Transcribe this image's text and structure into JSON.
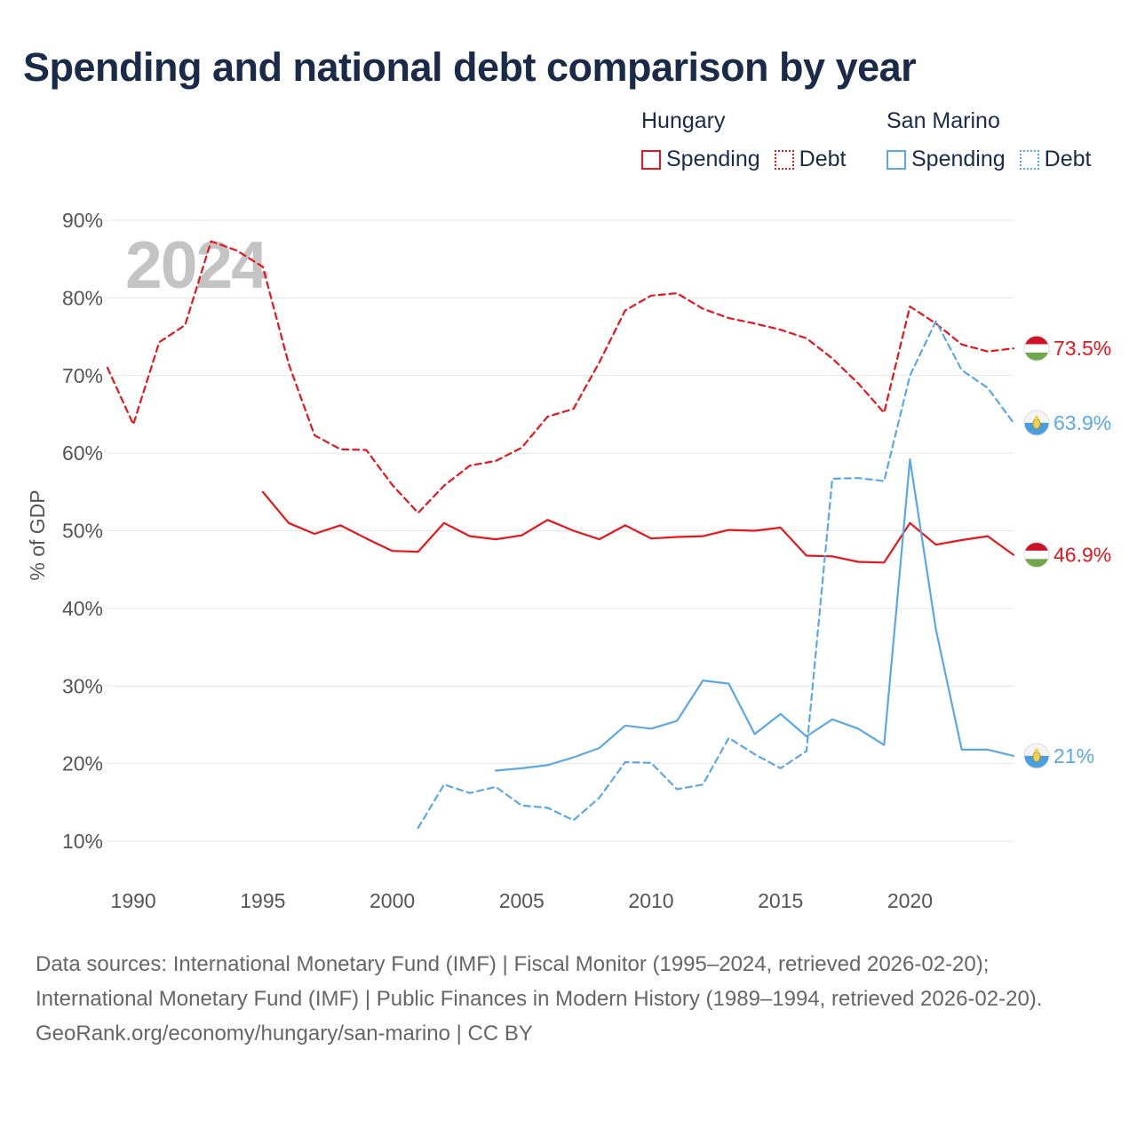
{
  "title": "Spending and national debt comparison by year",
  "legend": {
    "groups": [
      {
        "country": "Hungary",
        "color": "#e8151b",
        "items": [
          {
            "label": "Spending",
            "style": "solid"
          },
          {
            "label": "Debt",
            "style": "dotted"
          }
        ]
      },
      {
        "country": "San Marino",
        "color": "#5ba8e6",
        "items": [
          {
            "label": "Spending",
            "style": "solid"
          },
          {
            "label": "Debt",
            "style": "dotted"
          }
        ]
      }
    ]
  },
  "footer": {
    "sources": "Data sources: International Monetary Fund (IMF) | Fiscal Monitor (1995–2024, retrieved 2026-02-20); International Monetary Fund (IMF) | Public Finances in Modern History (1989–1994, retrieved 2026-02-20).",
    "credit": "GeoRank.org/economy/hungary/san-marino | CC BY"
  },
  "chart_data": {
    "type": "line",
    "title": "Spending and national debt comparison by year",
    "watermark_year": "2024",
    "ylabel": "% of GDP",
    "xlabel": "",
    "xlim": [
      1989,
      2024
    ],
    "ylim": [
      10,
      90
    ],
    "yticks": [
      10,
      20,
      30,
      40,
      50,
      60,
      70,
      80,
      90
    ],
    "ytick_labels": [
      "10%",
      "20%",
      "30%",
      "40%",
      "50%",
      "60%",
      "70%",
      "80%",
      "90%"
    ],
    "xticks": [
      1990,
      1995,
      2000,
      2005,
      2010,
      2015,
      2020
    ],
    "grid": true,
    "series": [
      {
        "name": "Hungary Debt",
        "country": "Hungary",
        "color": "#e8151b",
        "dash": true,
        "end_label": "73.5%",
        "flag": "hungary",
        "points": [
          [
            1989,
            71
          ],
          [
            1990,
            63.7
          ],
          [
            1991,
            74.3
          ],
          [
            1992,
            76.5
          ],
          [
            1993,
            87.3
          ],
          [
            1994,
            86.1
          ],
          [
            1995,
            84
          ],
          [
            1996,
            71.5
          ],
          [
            1997,
            62.3
          ],
          [
            1998,
            60.5
          ],
          [
            1999,
            60.4
          ],
          [
            2000,
            55.9
          ],
          [
            2001,
            52.3
          ],
          [
            2002,
            55.8
          ],
          [
            2003,
            58.4
          ],
          [
            2004,
            59
          ],
          [
            2005,
            60.7
          ],
          [
            2006,
            64.7
          ],
          [
            2007,
            65.7
          ],
          [
            2008,
            71.7
          ],
          [
            2009,
            78.4
          ],
          [
            2010,
            80.3
          ],
          [
            2011,
            80.6
          ],
          [
            2012,
            78.6
          ],
          [
            2013,
            77.4
          ],
          [
            2014,
            76.7
          ],
          [
            2015,
            75.9
          ],
          [
            2016,
            74.8
          ],
          [
            2017,
            72.2
          ],
          [
            2018,
            69
          ],
          [
            2019,
            65.2
          ],
          [
            2020,
            78.9
          ],
          [
            2021,
            76.7
          ],
          [
            2022,
            74
          ],
          [
            2023,
            73.1
          ],
          [
            2024,
            73.5
          ]
        ]
      },
      {
        "name": "Hungary Spending",
        "country": "Hungary",
        "color": "#e8151b",
        "dash": false,
        "end_label": "46.9%",
        "flag": "hungary",
        "points": [
          [
            1995,
            55
          ],
          [
            1996,
            51
          ],
          [
            1997,
            49.6
          ],
          [
            1998,
            50.7
          ],
          [
            1999,
            49
          ],
          [
            2000,
            47.4
          ],
          [
            2001,
            47.3
          ],
          [
            2002,
            51
          ],
          [
            2003,
            49.3
          ],
          [
            2004,
            48.9
          ],
          [
            2005,
            49.4
          ],
          [
            2006,
            51.4
          ],
          [
            2007,
            50
          ],
          [
            2008,
            48.9
          ],
          [
            2009,
            50.7
          ],
          [
            2010,
            49
          ],
          [
            2011,
            49.2
          ],
          [
            2012,
            49.3
          ],
          [
            2013,
            50.1
          ],
          [
            2014,
            50
          ],
          [
            2015,
            50.4
          ],
          [
            2016,
            46.8
          ],
          [
            2017,
            46.7
          ],
          [
            2018,
            46
          ],
          [
            2019,
            45.9
          ],
          [
            2020,
            51
          ],
          [
            2021,
            48.2
          ],
          [
            2022,
            48.8
          ],
          [
            2023,
            49.3
          ],
          [
            2024,
            46.9
          ]
        ]
      },
      {
        "name": "San Marino Debt",
        "country": "San Marino",
        "color": "#5ba8e6",
        "dash": true,
        "end_label": "63.9%",
        "flag": "san-marino",
        "points": [
          [
            2001,
            11.7
          ],
          [
            2002,
            17.3
          ],
          [
            2003,
            16.2
          ],
          [
            2004,
            17
          ],
          [
            2005,
            14.6
          ],
          [
            2006,
            14.3
          ],
          [
            2007,
            12.7
          ],
          [
            2008,
            15.6
          ],
          [
            2009,
            20.2
          ],
          [
            2010,
            20.1
          ],
          [
            2011,
            16.7
          ],
          [
            2012,
            17.3
          ],
          [
            2013,
            23.3
          ],
          [
            2014,
            21.2
          ],
          [
            2015,
            19.4
          ],
          [
            2016,
            21.6
          ],
          [
            2017,
            56.7
          ],
          [
            2018,
            56.8
          ],
          [
            2019,
            56.4
          ],
          [
            2020,
            70
          ],
          [
            2021,
            77
          ],
          [
            2022,
            70.7
          ],
          [
            2023,
            68.4
          ],
          [
            2024,
            63.9
          ]
        ]
      },
      {
        "name": "San Marino Spending",
        "country": "San Marino",
        "color": "#5ba8e6",
        "dash": false,
        "end_label": "21%",
        "flag": "san-marino",
        "points": [
          [
            2004,
            19.1
          ],
          [
            2005,
            19.4
          ],
          [
            2006,
            19.8
          ],
          [
            2007,
            20.8
          ],
          [
            2008,
            22
          ],
          [
            2009,
            24.9
          ],
          [
            2010,
            24.5
          ],
          [
            2011,
            25.5
          ],
          [
            2012,
            30.7
          ],
          [
            2013,
            30.3
          ],
          [
            2014,
            23.8
          ],
          [
            2015,
            26.4
          ],
          [
            2016,
            23.5
          ],
          [
            2017,
            25.7
          ],
          [
            2018,
            24.5
          ],
          [
            2019,
            22.4
          ],
          [
            2020,
            59.2
          ],
          [
            2021,
            37.3
          ],
          [
            2022,
            21.8
          ],
          [
            2023,
            21.8
          ],
          [
            2024,
            21
          ]
        ]
      }
    ]
  }
}
